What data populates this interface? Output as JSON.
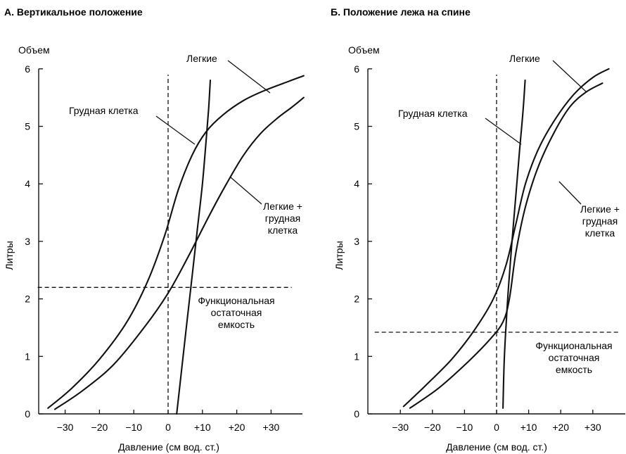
{
  "chart_data": [
    {
      "type": "line",
      "title": "А. Вертикальное положение",
      "ylabel": "Литры",
      "ylabel_top": "Объем",
      "xlabel": "Давление (см вод. ст.)",
      "xlim": [
        -38,
        40
      ],
      "ylim": [
        0,
        6
      ],
      "x_ticks": [
        -30,
        -20,
        -10,
        0,
        10,
        20,
        30
      ],
      "x_tick_labels": [
        "−30",
        "−20",
        "−10",
        "0",
        "+10",
        "+20",
        "+30"
      ],
      "y_ticks": [
        0,
        1,
        2,
        3,
        4,
        5,
        6
      ],
      "y_tick_labels": [
        "0",
        "1",
        "2",
        "3",
        "4",
        "5",
        "6"
      ],
      "grid": false,
      "series": [
        {
          "name": "Легкие",
          "style": "solid",
          "points": [
            [
              -35,
              0.1
            ],
            [
              -28,
              0.45
            ],
            [
              -20,
              0.95
            ],
            [
              -12,
              1.6
            ],
            [
              -6,
              2.3
            ],
            [
              -1,
              3.1
            ],
            [
              3,
              3.9
            ],
            [
              7,
              4.5
            ],
            [
              11,
              4.9
            ],
            [
              16,
              5.2
            ],
            [
              22,
              5.45
            ],
            [
              28,
              5.62
            ],
            [
              35,
              5.78
            ],
            [
              39.5,
              5.88
            ]
          ]
        },
        {
          "name": "Грудная клетка",
          "style": "solid",
          "points": [
            [
              2.5,
              0
            ],
            [
              4,
              0.8
            ],
            [
              5.5,
              1.6
            ],
            [
              7,
              2.4
            ],
            [
              8.5,
              3.2
            ],
            [
              10,
              4.0
            ],
            [
              11,
              4.7
            ],
            [
              11.8,
              5.3
            ],
            [
              12.3,
              5.8
            ]
          ]
        },
        {
          "name": "Легкие + грудная клетка",
          "style": "solid",
          "points": [
            [
              -33,
              0.08
            ],
            [
              -25,
              0.4
            ],
            [
              -16,
              0.85
            ],
            [
              -7,
              1.5
            ],
            [
              0,
              2.1
            ],
            [
              6,
              2.75
            ],
            [
              12,
              3.45
            ],
            [
              17,
              4.0
            ],
            [
              22,
              4.5
            ],
            [
              27,
              4.88
            ],
            [
              32,
              5.15
            ],
            [
              36,
              5.33
            ],
            [
              39.5,
              5.5
            ]
          ]
        },
        {
          "name": "Функциональная остаточная емкость",
          "style": "dashed",
          "points": [
            [
              -38,
              2.2
            ],
            [
              36,
              2.2
            ]
          ]
        },
        {
          "name": "",
          "style": "dashed",
          "points": [
            [
              0,
              0
            ],
            [
              0,
              5.9
            ]
          ]
        }
      ],
      "annotations": [
        {
          "text": "Легкие"
        },
        {
          "text": "Грудная клетка"
        },
        {
          "text": "Легкие +"
        },
        {
          "text": "грудная"
        },
        {
          "text": "клетка"
        },
        {
          "text": "Функциональная"
        },
        {
          "text": "остаточная"
        },
        {
          "text": "емкость"
        }
      ]
    },
    {
      "type": "line",
      "title": "Б. Положение лежа на спине",
      "ylabel": "Литры",
      "ylabel_top": "Объем",
      "xlabel": "Давление (см вод. ст.)",
      "xlim": [
        -38,
        40
      ],
      "ylim": [
        0,
        6
      ],
      "x_ticks": [
        -30,
        -20,
        -10,
        0,
        10,
        20,
        30
      ],
      "x_tick_labels": [
        "−30",
        "−20",
        "−10",
        "0",
        "+10",
        "+20",
        "+30"
      ],
      "y_ticks": [
        0,
        1,
        2,
        3,
        4,
        5,
        6
      ],
      "y_tick_labels": [
        "0",
        "1",
        "2",
        "3",
        "4",
        "5",
        "6"
      ],
      "grid": false,
      "series": [
        {
          "name": "Легкие",
          "style": "solid",
          "points": [
            [
              -29,
              0.13
            ],
            [
              -22,
              0.5
            ],
            [
              -14,
              0.95
            ],
            [
              -7,
              1.45
            ],
            [
              -1,
              2.0
            ],
            [
              3,
              2.6
            ],
            [
              6,
              3.3
            ],
            [
              9,
              4.0
            ],
            [
              13,
              4.6
            ],
            [
              18,
              5.1
            ],
            [
              24,
              5.55
            ],
            [
              30,
              5.85
            ],
            [
              35,
              6.0
            ]
          ]
        },
        {
          "name": "Грудная клетка",
          "style": "solid",
          "points": [
            [
              2,
              0.1
            ],
            [
              2.3,
              0.8
            ],
            [
              2.8,
              1.4
            ],
            [
              3.7,
              2.2
            ],
            [
              4.8,
              3.0
            ],
            [
              6,
              3.8
            ],
            [
              7.2,
              4.6
            ],
            [
              8.3,
              5.3
            ],
            [
              8.9,
              5.8
            ]
          ]
        },
        {
          "name": "Легкие + грудная клетка",
          "style": "solid",
          "points": [
            [
              -27,
              0.1
            ],
            [
              -18,
              0.45
            ],
            [
              -9,
              0.9
            ],
            [
              -2,
              1.3
            ],
            [
              2,
              1.6
            ],
            [
              4,
              2.0
            ],
            [
              6,
              2.8
            ],
            [
              9,
              3.6
            ],
            [
              13,
              4.3
            ],
            [
              18,
              4.9
            ],
            [
              23,
              5.35
            ],
            [
              28,
              5.6
            ],
            [
              33,
              5.75
            ]
          ]
        },
        {
          "name": "Функциональная остаточная емкость",
          "style": "dashed",
          "points": [
            [
              -38,
              1.42
            ],
            [
              38,
              1.42
            ]
          ]
        },
        {
          "name": "",
          "style": "dashed",
          "points": [
            [
              0,
              0
            ],
            [
              0,
              5.9
            ]
          ]
        }
      ],
      "annotations": [
        {
          "text": "Легкие"
        },
        {
          "text": "Грудная клетка"
        },
        {
          "text": "Легкие +"
        },
        {
          "text": "грудная"
        },
        {
          "text": "клетка"
        },
        {
          "text": "Функциональная"
        },
        {
          "text": "остаточная"
        },
        {
          "text": "емкость"
        }
      ]
    }
  ]
}
